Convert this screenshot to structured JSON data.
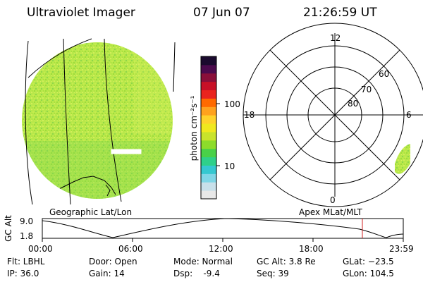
{
  "header": {
    "instrument": "Ultraviolet Imager",
    "date": "07 Jun 07",
    "time": "21:26:59 UT"
  },
  "colorbar": {
    "label": "photon cm⁻²s⁻¹",
    "tick_high": "100",
    "tick_low": "10",
    "colors": [
      "#e8e8e8",
      "#c8e0ea",
      "#7fd6e6",
      "#35c8d0",
      "#2fd08a",
      "#49d149",
      "#8ddc2a",
      "#c9e32b",
      "#f0e81e",
      "#ffd22b",
      "#ffa21e",
      "#ff6a00",
      "#e9241e",
      "#c81027",
      "#8a0f3a",
      "#4b0a4d",
      "#1a0a2e"
    ]
  },
  "polar_plot": {
    "mlt_labels": {
      "top": "12",
      "left": "18",
      "right": "6",
      "bottom": "0"
    },
    "lat_labels": [
      "60",
      "70",
      "80"
    ]
  },
  "geo_caption": "Geographic Lat/Lon",
  "apex_caption": "Apex MLat/MLT",
  "gc_alt_chart": {
    "ylabel": "GC Alt",
    "y_ticks": [
      "9.0",
      "1.8"
    ],
    "x_ticks": [
      "00:00",
      "06:00",
      "12:00",
      "18:00",
      "23:59"
    ],
    "marker_color": "#d02020"
  },
  "status": {
    "filter": "Flt: LBHL",
    "door": "Door: Open",
    "mode": "Mode: Normal",
    "gc_alt": "GC Alt: 3.8 Re",
    "glat": "GLat: −23.5",
    "ip": "IP: 36.0",
    "gain": "Gain: 14",
    "dsp": "Dsp:    -9.4",
    "seq": "Seq: 39",
    "glon": "GLon: 104.5"
  }
}
